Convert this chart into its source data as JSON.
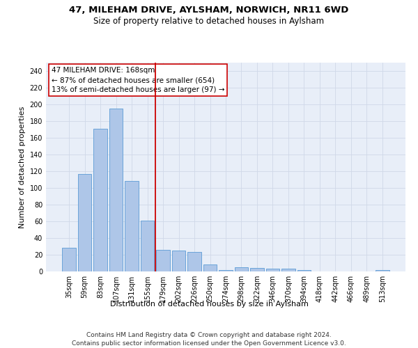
{
  "title": "47, MILEHAM DRIVE, AYLSHAM, NORWICH, NR11 6WD",
  "subtitle": "Size of property relative to detached houses in Aylsham",
  "xlabel": "Distribution of detached houses by size in Aylsham",
  "ylabel": "Number of detached properties",
  "categories": [
    "35sqm",
    "59sqm",
    "83sqm",
    "107sqm",
    "131sqm",
    "155sqm",
    "179sqm",
    "202sqm",
    "226sqm",
    "250sqm",
    "274sqm",
    "298sqm",
    "322sqm",
    "346sqm",
    "370sqm",
    "394sqm",
    "418sqm",
    "442sqm",
    "466sqm",
    "489sqm",
    "513sqm"
  ],
  "values": [
    28,
    117,
    171,
    195,
    108,
    61,
    26,
    25,
    23,
    8,
    2,
    5,
    4,
    3,
    3,
    2,
    0,
    0,
    0,
    0,
    2
  ],
  "bar_color": "#aec6e8",
  "bar_edge_color": "#5b9bd5",
  "vline_x": 5.5,
  "vline_color": "#cc0000",
  "annotation_line1": "47 MILEHAM DRIVE: 168sqm",
  "annotation_line2": "← 87% of detached houses are smaller (654)",
  "annotation_line3": "13% of semi-detached houses are larger (97) →",
  "annotation_box_color": "#cc0000",
  "ylim": [
    0,
    250
  ],
  "yticks": [
    0,
    20,
    40,
    60,
    80,
    100,
    120,
    140,
    160,
    180,
    200,
    220,
    240
  ],
  "grid_color": "#d0d8e8",
  "bg_color": "#e8eef8",
  "footer": "Contains HM Land Registry data © Crown copyright and database right 2024.\nContains public sector information licensed under the Open Government Licence v3.0.",
  "title_fontsize": 9.5,
  "subtitle_fontsize": 8.5,
  "xlabel_fontsize": 8,
  "ylabel_fontsize": 8,
  "tick_fontsize": 7,
  "annotation_fontsize": 7.5,
  "footer_fontsize": 6.5
}
